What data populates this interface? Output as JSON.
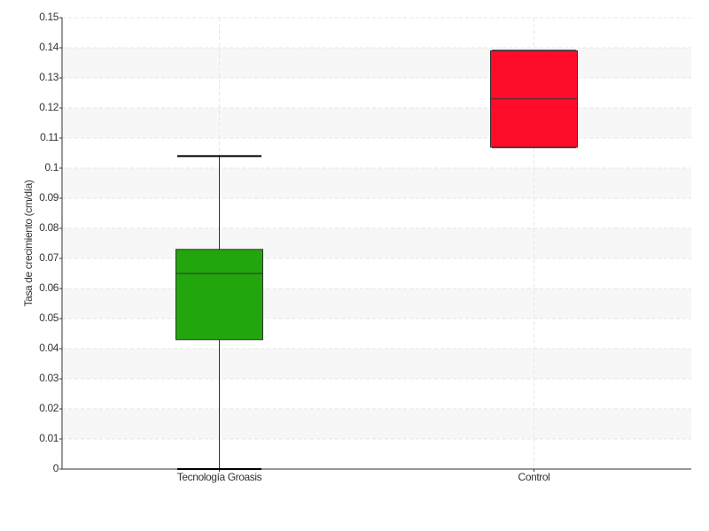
{
  "chart_data": {
    "type": "box",
    "ylabel": "Tasa de crecimiento (cm/día)",
    "categories": [
      "Tecnología Groasis",
      "Control"
    ],
    "boxes": [
      {
        "min": 0,
        "q1": 0.043,
        "median": 0.065,
        "q3": 0.073,
        "max": 0.104,
        "color": "#22a50d"
      },
      {
        "min": 0.107,
        "q1": 0.107,
        "median": 0.123,
        "q3": 0.139,
        "max": 0.139,
        "color": "#ff0c2a"
      }
    ],
    "ylim": [
      0,
      0.15
    ],
    "yticks": [
      0,
      0.01,
      0.02,
      0.03,
      0.04,
      0.05,
      0.06,
      0.07,
      0.08,
      0.09,
      0.1,
      0.11,
      0.12,
      0.13,
      0.14,
      0.15
    ],
    "grid": true
  }
}
